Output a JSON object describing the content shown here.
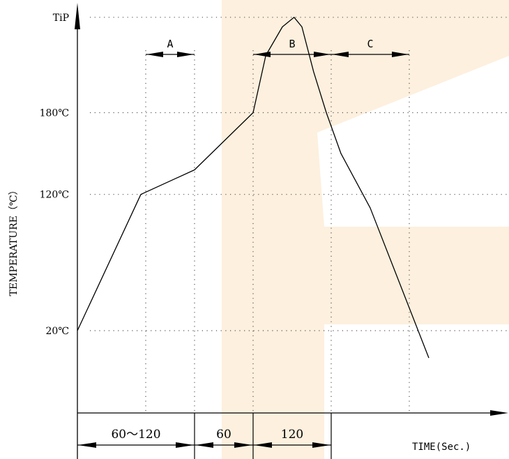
{
  "chart_data": {
    "type": "line",
    "title": "",
    "xlabel": "TIME(Sec.)",
    "ylabel": "TEMPERATURE（℃）",
    "y_ticks": [
      {
        "label": "TiP",
        "value": 250
      },
      {
        "label": "180℃",
        "value": 180
      },
      {
        "label": "120℃",
        "value": 120
      },
      {
        "label": "20℃",
        "value": 20
      }
    ],
    "x_segments": [
      {
        "label": "60～120",
        "from": 0,
        "to": 120
      },
      {
        "label": "60",
        "from": 120,
        "to": 180
      },
      {
        "label": "120",
        "from": 180,
        "to": 260
      }
    ],
    "zones": [
      {
        "label": "A",
        "from": 70,
        "to": 120
      },
      {
        "label": "B",
        "from": 180,
        "to": 260
      },
      {
        "label": "C",
        "from": 260,
        "to": 340
      }
    ],
    "series": [
      {
        "points": [
          [
            0,
            20
          ],
          [
            65,
            120
          ],
          [
            120,
            138
          ],
          [
            180,
            180
          ],
          [
            193,
            222
          ],
          [
            210,
            243
          ],
          [
            222,
            250
          ],
          [
            230,
            243
          ],
          [
            242,
            210
          ],
          [
            255,
            180
          ],
          [
            270,
            150
          ],
          [
            300,
            110
          ],
          [
            360,
            0
          ]
        ]
      }
    ],
    "grid": "dotted",
    "xlim": [
      0,
      370
    ],
    "ylim": [
      -60,
      325
    ],
    "colors": {
      "line": "#000000",
      "grid": "#555555",
      "watermark": "#fbe3c2"
    }
  }
}
